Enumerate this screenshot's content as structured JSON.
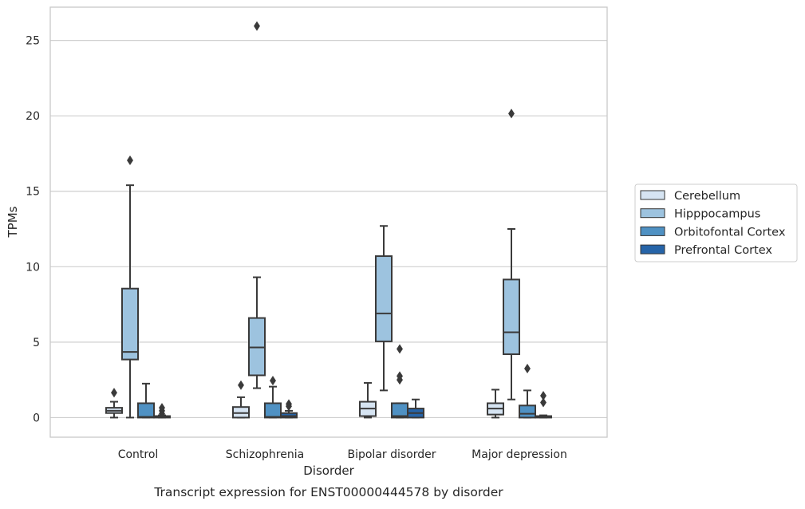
{
  "chart_data": {
    "type": "box",
    "title": "",
    "caption": "Transcript expression for ENST00000444578 by disorder",
    "xlabel": "Disorder",
    "ylabel": "TPMs",
    "ylim": [
      -1.3,
      27.2
    ],
    "yticks": [
      0,
      5,
      10,
      15,
      20,
      25
    ],
    "grid": "horizontal",
    "legend_position": "right",
    "categories": [
      "Control",
      "Schizophrenia",
      "Bipolar disorder",
      "Major depression"
    ],
    "series": [
      {
        "name": "Cerebellum",
        "color": "#d6e4f2",
        "boxes": [
          {
            "whisker_low": 0.0,
            "q1": 0.3,
            "median": 0.45,
            "q3": 0.65,
            "whisker_high": 1.05,
            "outliers": [
              1.65
            ]
          },
          {
            "whisker_low": 0.0,
            "q1": 0.0,
            "median": 0.3,
            "q3": 0.7,
            "whisker_high": 1.35,
            "outliers": [
              2.15
            ]
          },
          {
            "whisker_low": 0.0,
            "q1": 0.1,
            "median": 0.6,
            "q3": 1.05,
            "whisker_high": 2.3,
            "outliers": []
          },
          {
            "whisker_low": 0.0,
            "q1": 0.2,
            "median": 0.6,
            "q3": 0.95,
            "whisker_high": 1.85,
            "outliers": []
          }
        ]
      },
      {
        "name": "Hipppocampus",
        "color": "#9dc3df",
        "boxes": [
          {
            "whisker_low": 0.0,
            "q1": 3.85,
            "median": 4.35,
            "q3": 8.55,
            "whisker_high": 15.4,
            "outliers": [
              17.05
            ]
          },
          {
            "whisker_low": 1.95,
            "q1": 2.8,
            "median": 4.65,
            "q3": 6.6,
            "whisker_high": 9.3,
            "outliers": [
              25.95
            ]
          },
          {
            "whisker_low": 1.8,
            "q1": 5.05,
            "median": 6.9,
            "q3": 10.7,
            "whisker_high": 12.7,
            "outliers": []
          },
          {
            "whisker_low": 1.2,
            "q1": 4.2,
            "median": 5.65,
            "q3": 9.15,
            "whisker_high": 12.5,
            "outliers": [
              20.15
            ]
          }
        ]
      },
      {
        "name": "Orbitofontal Cortex",
        "color": "#4f91c3",
        "boxes": [
          {
            "whisker_low": 0.0,
            "q1": 0.0,
            "median": 0.05,
            "q3": 0.95,
            "whisker_high": 2.25,
            "outliers": []
          },
          {
            "whisker_low": 0.0,
            "q1": 0.0,
            "median": 0.05,
            "q3": 0.95,
            "whisker_high": 2.05,
            "outliers": [
              2.45
            ]
          },
          {
            "whisker_low": 0.0,
            "q1": 0.0,
            "median": 0.1,
            "q3": 0.95,
            "whisker_high": 0.95,
            "outliers": [
              4.55,
              2.75,
              2.5
            ]
          },
          {
            "whisker_low": 0.0,
            "q1": 0.0,
            "median": 0.25,
            "q3": 0.8,
            "whisker_high": 1.8,
            "outliers": [
              3.25
            ]
          }
        ]
      },
      {
        "name": "Prefrontal Cortex",
        "color": "#2664a8",
        "boxes": [
          {
            "whisker_low": 0.0,
            "q1": 0.0,
            "median": 0.05,
            "q3": 0.1,
            "whisker_high": 0.15,
            "outliers": [
              0.65,
              0.45,
              0.25
            ]
          },
          {
            "whisker_low": 0.0,
            "q1": 0.0,
            "median": 0.1,
            "q3": 0.3,
            "whisker_high": 0.45,
            "outliers": [
              0.9,
              0.75
            ]
          },
          {
            "whisker_low": 0.0,
            "q1": 0.0,
            "median": 0.3,
            "q3": 0.6,
            "whisker_high": 1.2,
            "outliers": []
          },
          {
            "whisker_low": 0.0,
            "q1": 0.0,
            "median": 0.05,
            "q3": 0.1,
            "whisker_high": 0.15,
            "outliers": [
              1.45,
              1.0
            ]
          }
        ]
      }
    ],
    "colors": {
      "edge": "#3a3a3a",
      "grid": "#cfcfcf",
      "frame": "#c8c8c8"
    }
  }
}
